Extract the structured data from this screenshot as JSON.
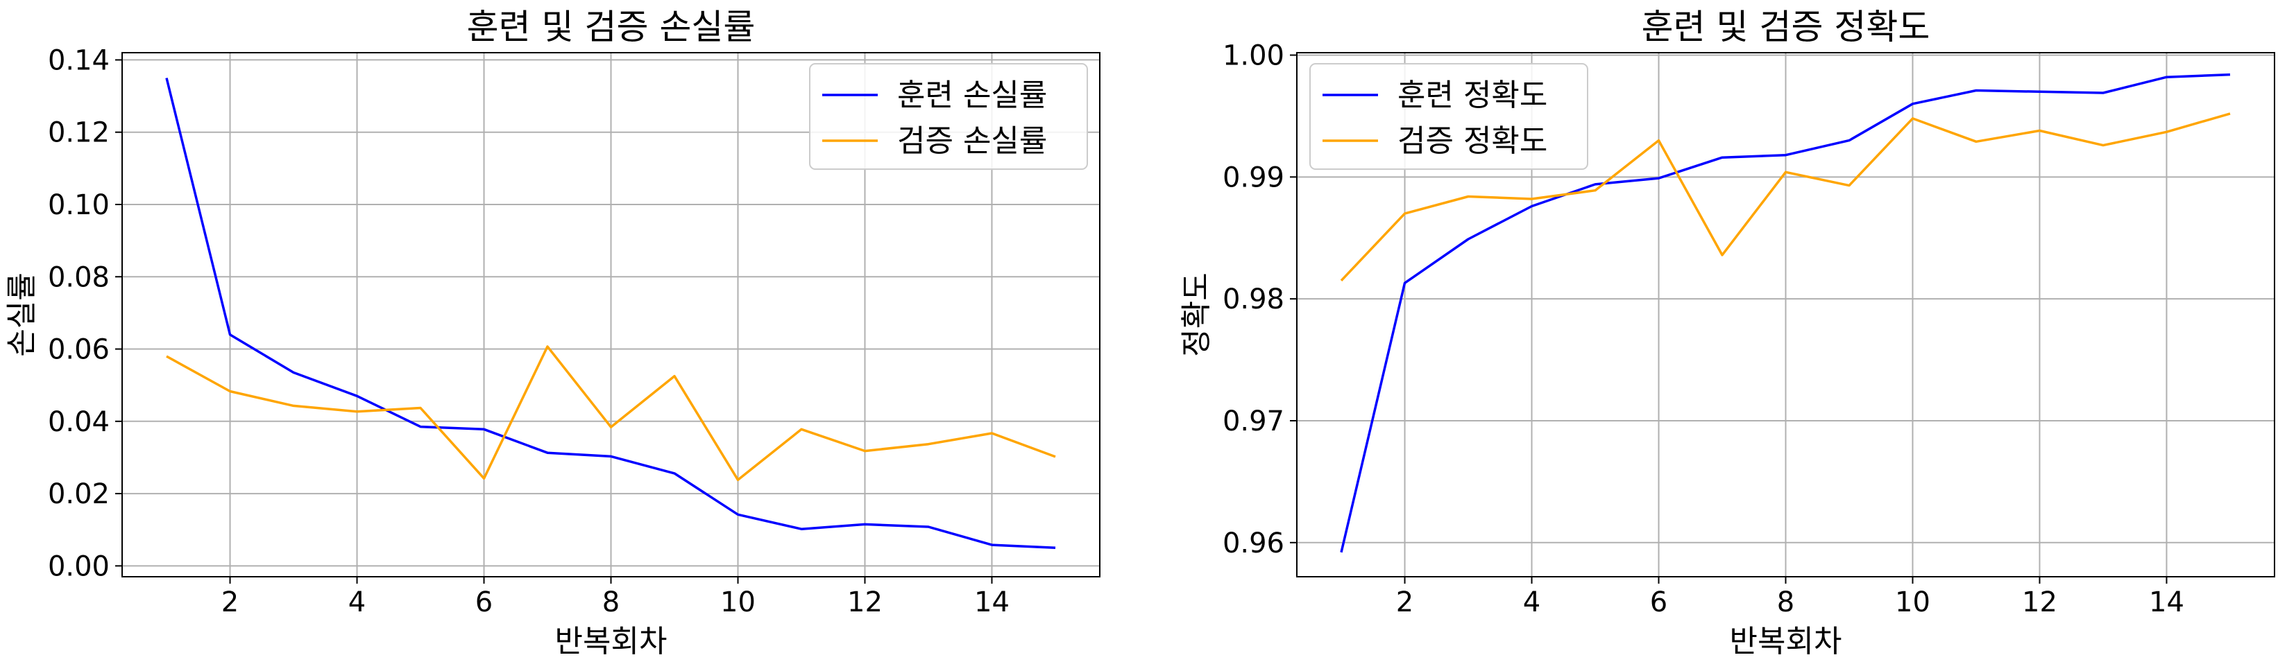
{
  "chart_data": [
    {
      "type": "line",
      "title": "훈련 및 검증 손실률",
      "xlabel": "반복회차",
      "ylabel": "손실률",
      "xlim": [
        0.3,
        15.7
      ],
      "ylim": [
        -0.003,
        0.142
      ],
      "xticks": [
        2,
        4,
        6,
        8,
        10,
        12,
        14
      ],
      "yticks": [
        0.0,
        0.02,
        0.04,
        0.06,
        0.08,
        0.1,
        0.12,
        0.14
      ],
      "ytick_labels": [
        "0.00",
        "0.02",
        "0.04",
        "0.06",
        "0.08",
        "0.10",
        "0.12",
        "0.14"
      ],
      "grid": true,
      "legend_position": "top-right",
      "x": [
        1,
        2,
        3,
        4,
        5,
        6,
        7,
        8,
        9,
        10,
        11,
        12,
        13,
        14,
        15
      ],
      "series": [
        {
          "name": "훈련 손실률",
          "color": "#0000ff",
          "values": [
            0.135,
            0.064,
            0.0535,
            0.047,
            0.0385,
            0.0378,
            0.0313,
            0.0303,
            0.0256,
            0.0142,
            0.0102,
            0.0115,
            0.0108,
            0.0058,
            0.005
          ]
        },
        {
          "name": "검증 손실률",
          "color": "#ffa500",
          "values": [
            0.058,
            0.0483,
            0.0443,
            0.0427,
            0.0437,
            0.0242,
            0.0607,
            0.0384,
            0.0525,
            0.0238,
            0.0378,
            0.0318,
            0.0337,
            0.0367,
            0.0302
          ]
        }
      ]
    },
    {
      "type": "line",
      "title": "훈련 및 검증 정확도",
      "xlabel": "반복회차",
      "ylabel": "정확도",
      "xlim": [
        0.3,
        15.7
      ],
      "ylim": [
        0.9572,
        1.0002
      ],
      "xticks": [
        2,
        4,
        6,
        8,
        10,
        12,
        14
      ],
      "yticks": [
        0.96,
        0.97,
        0.98,
        0.99,
        1.0
      ],
      "ytick_labels": [
        "0.96",
        "0.97",
        "0.98",
        "0.99",
        "1.00"
      ],
      "grid": true,
      "legend_position": "top-left",
      "x": [
        1,
        2,
        3,
        4,
        5,
        6,
        7,
        8,
        9,
        10,
        11,
        12,
        13,
        14,
        15
      ],
      "series": [
        {
          "name": "훈련 정확도",
          "color": "#0000ff",
          "values": [
            0.9592,
            0.9813,
            0.9849,
            0.9876,
            0.9894,
            0.9899,
            0.9916,
            0.9918,
            0.993,
            0.996,
            0.9971,
            0.997,
            0.9969,
            0.9982,
            0.9984
          ]
        },
        {
          "name": "검증 정확도",
          "color": "#ffa500",
          "values": [
            0.9815,
            0.987,
            0.9884,
            0.9882,
            0.9889,
            0.993,
            0.9836,
            0.9904,
            0.9893,
            0.9948,
            0.9929,
            0.9938,
            0.9926,
            0.9937,
            0.9952
          ]
        }
      ]
    }
  ]
}
